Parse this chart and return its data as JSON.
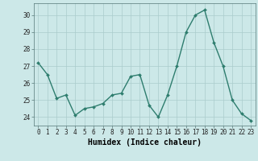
{
  "x": [
    0,
    1,
    2,
    3,
    4,
    5,
    6,
    7,
    8,
    9,
    10,
    11,
    12,
    13,
    14,
    15,
    16,
    17,
    18,
    19,
    20,
    21,
    22,
    23
  ],
  "y": [
    27.2,
    26.5,
    25.1,
    25.3,
    24.1,
    24.5,
    24.6,
    24.8,
    25.3,
    25.4,
    26.4,
    26.5,
    24.7,
    24.0,
    25.3,
    27.0,
    29.0,
    30.0,
    30.3,
    28.4,
    27.0,
    25.0,
    24.2,
    23.8
  ],
  "line_color": "#2e7d6e",
  "marker": "D",
  "marker_size": 2.0,
  "linewidth": 1.0,
  "xlabel": "Humidex (Indice chaleur)",
  "ylim": [
    23.5,
    30.7
  ],
  "xlim": [
    -0.5,
    23.5
  ],
  "yticks": [
    24,
    25,
    26,
    27,
    28,
    29,
    30
  ],
  "xticks": [
    0,
    1,
    2,
    3,
    4,
    5,
    6,
    7,
    8,
    9,
    10,
    11,
    12,
    13,
    14,
    15,
    16,
    17,
    18,
    19,
    20,
    21,
    22,
    23
  ],
  "bg_color": "#cce8e8",
  "grid_color": "#aacccc",
  "tick_fontsize": 5.5,
  "xlabel_fontsize": 7.0
}
